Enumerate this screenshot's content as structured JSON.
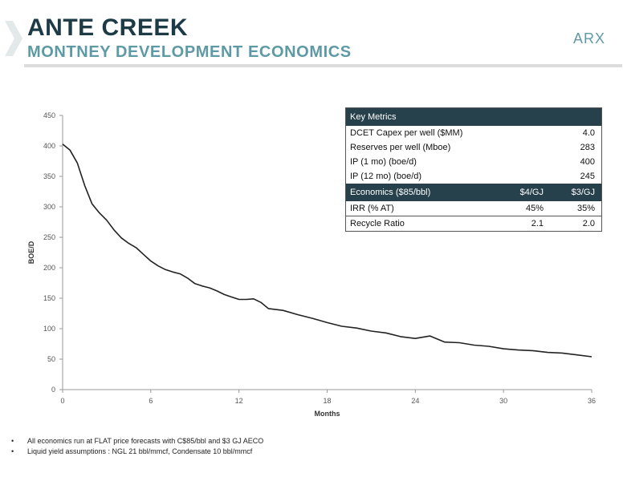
{
  "header": {
    "title": "ANTE CREEK",
    "subtitle": "MONTNEY DEVELOPMENT ECONOMICS",
    "logo": "ARX"
  },
  "colors": {
    "title": "#1d3b46",
    "subtitle": "#5e9aa5",
    "table_header": "#27414c",
    "line": "#222222"
  },
  "chart_data": {
    "type": "line",
    "xlabel": "Months",
    "ylabel": "BOE/D",
    "xlim": [
      0,
      36
    ],
    "ylim": [
      0,
      450
    ],
    "xticks": [
      0,
      6,
      12,
      18,
      24,
      30,
      36
    ],
    "yticks": [
      0,
      50,
      100,
      150,
      200,
      250,
      300,
      350,
      400,
      450
    ],
    "grid": false,
    "series": [
      {
        "x": [
          0,
          0.5,
          1,
          1.5,
          2,
          2.5,
          3,
          3.5,
          4,
          4.5,
          5,
          5.5,
          6,
          6.5,
          7,
          7.5,
          8,
          8.5,
          9,
          9.5,
          10,
          10.5,
          11,
          11.5,
          12,
          12.5,
          13,
          13.5,
          14,
          15,
          16,
          17,
          18,
          19,
          20,
          21,
          22,
          23,
          24,
          25,
          26,
          27,
          28,
          29,
          30,
          31,
          32,
          33,
          34,
          35,
          36
        ],
        "y": [
          403,
          393,
          372,
          335,
          305,
          290,
          278,
          262,
          249,
          240,
          233,
          222,
          211,
          203,
          197,
          193,
          190,
          183,
          174,
          170,
          167,
          162,
          156,
          152,
          148,
          148,
          149,
          143,
          133,
          130,
          123,
          117,
          110,
          104,
          101,
          96,
          93,
          87,
          84,
          88,
          78,
          77,
          73,
          71,
          67,
          65,
          64,
          61,
          60,
          57,
          54
        ]
      }
    ]
  },
  "key_metrics": {
    "title": "Key Metrics",
    "rows": [
      {
        "label": "DCET Capex per well ($MM)",
        "value": "4.0"
      },
      {
        "label": "Reserves  per well (Mboe)",
        "value": "283"
      },
      {
        "label": "IP (1 mo) (boe/d)",
        "value": "400"
      },
      {
        "label": "IP (12 mo) (boe/d)",
        "value": "245"
      }
    ],
    "economics_header": {
      "label": "Economics ($85/bbl)",
      "col1": "$4/GJ",
      "col2": "$3/GJ"
    },
    "economics_rows": [
      {
        "label": "IRR (% AT)",
        "col1": "45%",
        "col2": "35%"
      },
      {
        "label": "Recycle Ratio",
        "col1": "2.1",
        "col2": "2.0"
      }
    ]
  },
  "notes": [
    "All economics run at FLAT price forecasts with C$85/bbl and $3 GJ AECO",
    "Liquid yield assumptions :  NGL 21 bbl/mmcf, Condensate 10 bbl/mmcf"
  ],
  "note_bullet": "•"
}
